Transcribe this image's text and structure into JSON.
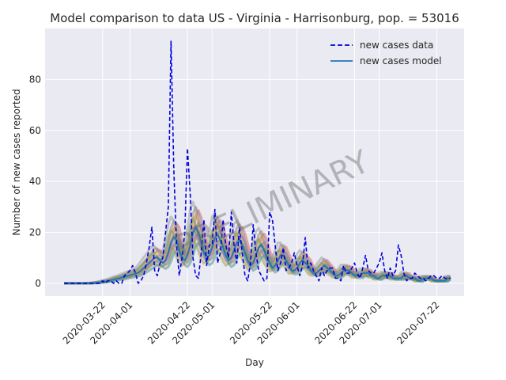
{
  "chart_data": {
    "type": "line",
    "title": "Model comparison to data US - Virginia - Harrisonburg, pop. = 53016",
    "xlabel": "Day",
    "ylabel": "Number of new cases reported",
    "watermark": "PRELIMINARY",
    "x_start": "2020-03-08",
    "x_end": "2020-07-27",
    "xlim": [
      "2020-03-01",
      "2020-08-01"
    ],
    "ylim": [
      -5,
      100
    ],
    "x_ticks": [
      "2020-03-22",
      "2020-04-01",
      "2020-04-22",
      "2020-05-01",
      "2020-05-22",
      "2020-06-01",
      "2020-06-22",
      "2020-07-01",
      "2020-07-22"
    ],
    "y_ticks": [
      0,
      20,
      40,
      60,
      80
    ],
    "grid": true,
    "legend_position": "top-right",
    "legend": [
      {
        "label": "new cases data",
        "style": "dashed",
        "color": "#0000dd"
      },
      {
        "label": "new cases model",
        "style": "solid",
        "color": "#1f77b4"
      }
    ],
    "series": [
      {
        "name": "new cases data",
        "style": "dashed",
        "color": "#0000dd",
        "start": "2020-03-08",
        "values": [
          0,
          0,
          0,
          0,
          0,
          0,
          0,
          0,
          0,
          0,
          0,
          0,
          0,
          0,
          1,
          0,
          1,
          1,
          0,
          1,
          0,
          0,
          3,
          4,
          5,
          7,
          4,
          0,
          1,
          3,
          8,
          14,
          22,
          5,
          3,
          8,
          10,
          20,
          30,
          95,
          45,
          15,
          3,
          10,
          20,
          53,
          35,
          10,
          3,
          2,
          12,
          25,
          7,
          15,
          15,
          29,
          8,
          12,
          25,
          15,
          10,
          28,
          15,
          8,
          22,
          12,
          3,
          1,
          8,
          23,
          12,
          5,
          3,
          1,
          2,
          28,
          25,
          15,
          5,
          8,
          14,
          5,
          6,
          8,
          12,
          7,
          3,
          7,
          18,
          6,
          8,
          5,
          3,
          1,
          6,
          3,
          5,
          6,
          6,
          2,
          2,
          1,
          7,
          4,
          4,
          6,
          8,
          4,
          2,
          6,
          11,
          5,
          4,
          4,
          6,
          8,
          12,
          5,
          2,
          6,
          3,
          5,
          15,
          11,
          4,
          1,
          2,
          2,
          4,
          3,
          2,
          2,
          1,
          2,
          3,
          3,
          2,
          2,
          3,
          2,
          2,
          2
        ]
      },
      {
        "name": "new cases model",
        "style": "solid",
        "color": "#1f77b4",
        "start": "2020-03-08",
        "values": [
          0,
          0,
          0,
          0,
          0,
          0,
          0,
          0,
          0,
          0.1,
          0.1,
          0.2,
          0.3,
          0.4,
          0.6,
          0.8,
          1,
          1.2,
          1.5,
          1.8,
          2,
          2.3,
          2.6,
          2.9,
          3.2,
          3.5,
          3.8,
          4.2,
          5,
          6,
          7,
          8,
          9,
          10,
          10,
          9,
          8,
          9,
          12,
          16,
          18,
          17,
          13,
          10,
          9,
          11,
          15,
          20,
          22,
          20,
          16,
          12,
          10,
          11,
          14,
          18,
          19,
          17,
          14,
          11,
          9,
          10,
          13,
          16,
          17,
          15,
          12,
          9,
          7,
          8,
          11,
          14,
          15,
          13,
          10,
          8,
          6,
          7,
          9,
          11,
          11,
          9,
          7,
          5,
          5,
          6,
          8,
          9,
          8,
          7,
          5,
          4,
          4,
          5,
          6,
          7,
          6,
          5,
          4,
          3,
          3,
          4,
          5,
          5,
          5,
          4,
          3,
          3,
          3,
          4,
          4,
          4,
          3,
          3,
          2,
          2,
          3,
          3,
          3,
          3,
          2,
          2,
          2,
          2,
          3,
          3,
          2,
          2,
          2,
          1,
          1,
          2,
          2,
          2,
          2,
          1,
          1,
          1,
          1,
          1,
          2,
          2
        ]
      }
    ]
  }
}
